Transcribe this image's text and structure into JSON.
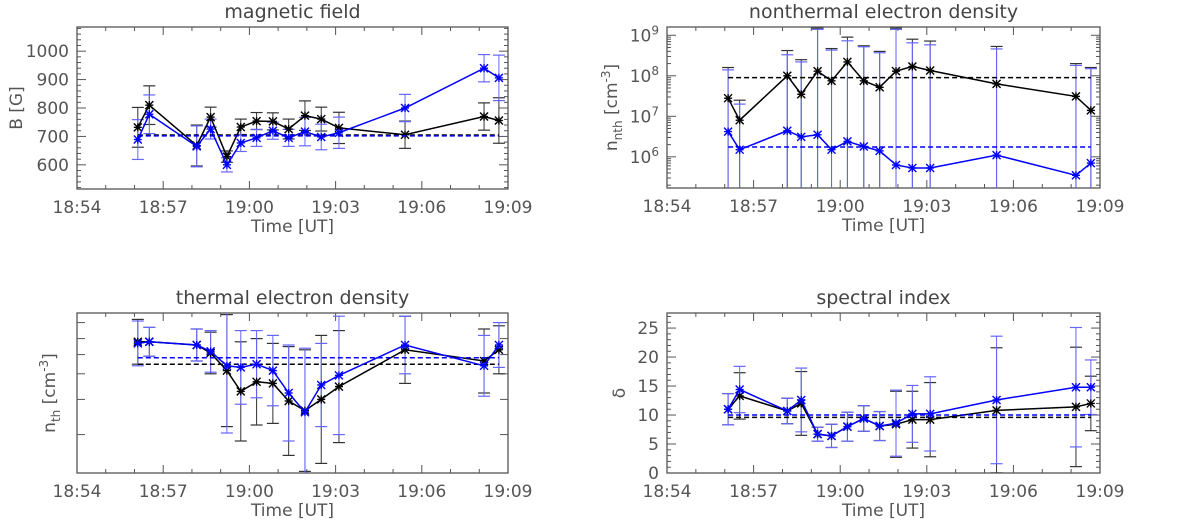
{
  "chart_data": [
    {
      "type": "line",
      "title": "magnetic field",
      "xlabel": "Time [UT]",
      "ylabel": "B [G]",
      "yscale": "linear",
      "xlim": [
        "18:54:00",
        "19:09:00"
      ],
      "ylim": [
        515,
        1085
      ],
      "x_ticks": [
        "18:54",
        "18:57",
        "19:00",
        "19:03",
        "19:06",
        "19:09"
      ],
      "y_ticks": [
        600,
        700,
        800,
        900,
        1000
      ],
      "y_tick_labels": [
        "600",
        "700",
        "800",
        "900",
        "1000"
      ],
      "x": [
        "18:56:07",
        "18:56:31",
        "18:58:10",
        "18:58:39",
        "18:59:13",
        "18:59:42",
        "19:00:15",
        "19:00:49",
        "19:01:22",
        "19:01:56",
        "19:02:30",
        "19:03:07",
        "19:05:25",
        "19:08:10",
        "19:08:41"
      ],
      "series": [
        {
          "color": "#000000",
          "error_color": "#333333",
          "values": [
            732,
            810,
            668,
            768,
            629,
            733,
            754,
            753,
            726,
            773,
            761,
            730,
            706,
            770,
            756
          ],
          "err": [
            70,
            68,
            72,
            35,
            20,
            28,
            30,
            30,
            35,
            52,
            42,
            55,
            48,
            48,
            80
          ],
          "mean": 705
        },
        {
          "color": "#0000ff",
          "error_color": "#6666ff",
          "values": [
            689,
            778,
            665,
            726,
            600,
            677,
            695,
            720,
            695,
            717,
            698,
            713,
            800,
            940,
            906
          ],
          "err": [
            70,
            68,
            72,
            35,
            25,
            30,
            30,
            30,
            30,
            50,
            45,
            55,
            48,
            48,
            80
          ],
          "mean": 702
        }
      ]
    },
    {
      "type": "line",
      "title": "nonthermal electron density",
      "xlabel": "Time [UT]",
      "ylabel": "n_nth [cm^-3]",
      "yscale": "log",
      "xlim": [
        "18:54:00",
        "19:09:00"
      ],
      "ylim": [
        170000,
        1600000000
      ],
      "x_ticks": [
        "18:54",
        "18:57",
        "19:00",
        "19:03",
        "19:06",
        "19:09"
      ],
      "y_ticks": [
        1000000,
        10000000,
        100000000,
        1000000000
      ],
      "y_tick_labels": [
        "10^6",
        "10^7",
        "10^8",
        "10^9"
      ],
      "x": [
        "18:56:07",
        "18:56:31",
        "18:58:10",
        "18:58:39",
        "18:59:13",
        "18:59:42",
        "19:00:15",
        "19:00:49",
        "19:01:22",
        "19:01:56",
        "19:02:30",
        "19:03:07",
        "19:05:25",
        "19:08:10",
        "19:08:41"
      ],
      "series": [
        {
          "color": "#000000",
          "error_color": "#333333",
          "values": [
            28000000.0,
            8000000.0,
            100000000.0,
            35000000.0,
            130000000.0,
            75000000.0,
            220000000.0,
            75000000.0,
            52000000.0,
            130000000.0,
            170000000.0,
            135000000.0,
            63000000.0,
            31000000.0,
            14000000.0
          ],
          "upper": [
            160000000.0,
            25000000.0,
            420000000.0,
            250000000.0,
            1500000000.0,
            470000000.0,
            900000000.0,
            550000000.0,
            400000000.0,
            1500000000.0,
            800000000.0,
            720000000.0,
            530000000.0,
            200000000.0,
            160000000.0
          ],
          "lower": [
            null,
            null,
            null,
            null,
            null,
            null,
            null,
            null,
            null,
            null,
            null,
            null,
            null,
            null,
            null
          ],
          "mean": 90000000.0
        },
        {
          "color": "#0000ff",
          "error_color": "#6666ff",
          "values": [
            4200000.0,
            1500000.0,
            4400000.0,
            3100000.0,
            3500000.0,
            1500000.0,
            2400000.0,
            1800000.0,
            1400000.0,
            630000.0,
            530000.0,
            530000.0,
            1100000.0,
            350000.0,
            700000.0
          ],
          "upper": [
            140000000.0,
            20000000.0,
            330000000.0,
            220000000.0,
            1400000000.0,
            430000000.0,
            730000000.0,
            520000000.0,
            370000000.0,
            1400000000.0,
            650000000.0,
            580000000.0,
            460000000.0,
            180000000.0,
            150000000.0
          ],
          "lower": [
            null,
            null,
            null,
            null,
            null,
            null,
            null,
            null,
            null,
            null,
            null,
            null,
            null,
            null,
            null
          ],
          "mean": 1750000.0
        }
      ]
    },
    {
      "type": "line",
      "title": "thermal electron density",
      "xlabel": "Time [UT]",
      "ylabel": "n_th [cm^-3]",
      "yscale": "linear",
      "xlim": [
        "18:54:00",
        "19:09:00"
      ],
      "ylim": [
        0,
        100
      ],
      "x_ticks": [
        "18:54",
        "18:57",
        "19:00",
        "19:03",
        "19:06",
        "19:09"
      ],
      "y_ticks": [],
      "y_tick_labels": [],
      "x": [
        "18:56:07",
        "18:56:31",
        "18:58:10",
        "18:58:39",
        "18:59:13",
        "18:59:42",
        "19:00:15",
        "19:00:49",
        "19:01:22",
        "19:01:56",
        "19:02:30",
        "19:03:07",
        "19:05:25",
        "19:08:10",
        "19:08:41"
      ],
      "series": [
        {
          "color": "#000000",
          "error_color": "#333333",
          "values": [
            82,
            82,
            80,
            75,
            64,
            51,
            57,
            56,
            45,
            39,
            46,
            54,
            77,
            70,
            77
          ],
          "err": [
            14,
            9,
            10,
            13,
            35,
            31,
            27,
            25,
            34,
            38,
            40,
            35,
            21,
            20,
            15
          ],
          "mean": 68
        },
        {
          "color": "#0000ff",
          "error_color": "#6666ff",
          "values": [
            81,
            82,
            80,
            76,
            67,
            66,
            68,
            64,
            50,
            38,
            55,
            61,
            80,
            67,
            80
          ],
          "err": [
            14,
            9,
            10,
            13,
            42,
            23,
            21,
            22,
            30,
            40,
            26,
            37,
            18,
            19,
            14
          ],
          "mean": 72
        }
      ]
    },
    {
      "type": "line",
      "title": "spectral index",
      "xlabel": "Time [UT]",
      "ylabel": "δ",
      "yscale": "linear",
      "xlim": [
        "18:54:00",
        "19:09:00"
      ],
      "ylim": [
        0,
        27.6
      ],
      "x_ticks": [
        "18:54",
        "18:57",
        "19:00",
        "19:03",
        "19:06",
        "19:09"
      ],
      "y_ticks": [
        0,
        5,
        10,
        15,
        20,
        25
      ],
      "y_tick_labels": [
        "0",
        "5",
        "10",
        "15",
        "20",
        "25"
      ],
      "x": [
        "18:56:07",
        "18:56:31",
        "18:58:10",
        "18:58:39",
        "18:59:13",
        "18:59:42",
        "19:00:15",
        "19:00:49",
        "19:01:22",
        "19:01:56",
        "19:02:30",
        "19:03:07",
        "19:05:25",
        "19:08:10",
        "19:08:41"
      ],
      "series": [
        {
          "color": "#000000",
          "error_color": "#333333",
          "values": [
            11.0,
            13.3,
            10.7,
            12.0,
            6.7,
            6.4,
            8.0,
            9.4,
            8.1,
            8.4,
            9.2,
            9.2,
            10.8,
            11.4,
            12.0
          ],
          "err": [
            2.7,
            4,
            2.2,
            5.5,
            1.2,
            2,
            2.5,
            2.2,
            2.5,
            5.7,
            4.9,
            6.4,
            10.8,
            10.3,
            4.7
          ],
          "mean": 9.6
        },
        {
          "color": "#0000ff",
          "error_color": "#6666ff",
          "values": [
            11.0,
            14.4,
            10.7,
            12.6,
            6.7,
            6.4,
            8.0,
            9.4,
            8.1,
            8.6,
            10.2,
            10.2,
            12.6,
            14.8,
            14.8
          ],
          "err": [
            2.7,
            4,
            2.2,
            5.5,
            1.2,
            2,
            2.5,
            2.2,
            2.5,
            5.7,
            4.9,
            6.4,
            11,
            10.3,
            4.7
          ],
          "mean": 10.0
        }
      ]
    }
  ]
}
